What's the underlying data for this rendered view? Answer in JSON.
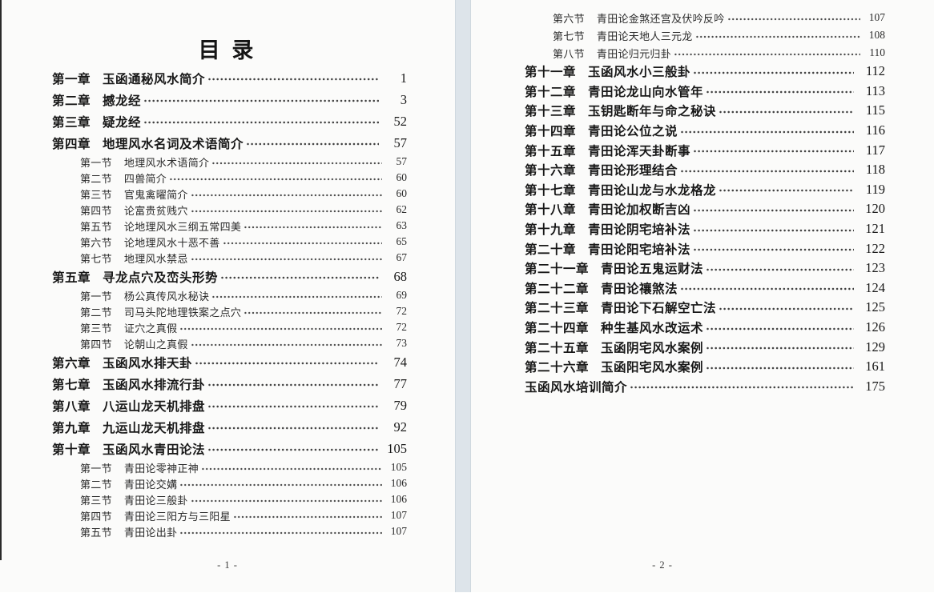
{
  "meta": {
    "document_title": "目 录",
    "accent_colors": {
      "page_background": "#fbfbfa",
      "page_gap": "#dde4ea",
      "text": "#1f1f1f"
    }
  },
  "page1": {
    "title": "目 录",
    "footer": "- 1 -",
    "entries": [
      {
        "type": "chapter",
        "label": "第一章",
        "title": "玉函通秘风水简介",
        "page": "1"
      },
      {
        "type": "chapter",
        "label": "第二章",
        "title": "撼龙经",
        "page": "3"
      },
      {
        "type": "chapter",
        "label": "第三章",
        "title": "疑龙经",
        "page": "52"
      },
      {
        "type": "chapter",
        "label": "第四章",
        "title": "地理风水名词及术语简介",
        "page": "57"
      },
      {
        "type": "section",
        "label": "第一节",
        "title": "地理风水术语简介",
        "page": "57"
      },
      {
        "type": "section",
        "label": "第二节",
        "title": "四兽简介",
        "page": "60"
      },
      {
        "type": "section",
        "label": "第三节",
        "title": "官鬼禽曜简介",
        "page": "60"
      },
      {
        "type": "section",
        "label": "第四节",
        "title": "论富贵贫贱穴",
        "page": "62"
      },
      {
        "type": "section",
        "label": "第五节",
        "title": "论地理风水三纲五常四美",
        "page": "63"
      },
      {
        "type": "section",
        "label": "第六节",
        "title": "论地理风水十恶不善",
        "page": "65"
      },
      {
        "type": "section",
        "label": "第七节",
        "title": "地理风水禁忌",
        "page": "67"
      },
      {
        "type": "chapter",
        "label": "第五章",
        "title": "寻龙点穴及峦头形势",
        "page": "68"
      },
      {
        "type": "section",
        "label": "第一节",
        "title": "杨公真传风水秘诀",
        "page": "69"
      },
      {
        "type": "section",
        "label": "第二节",
        "title": "司马头陀地理铁案之点穴",
        "page": "72"
      },
      {
        "type": "section",
        "label": "第三节",
        "title": "证穴之真假",
        "page": "72"
      },
      {
        "type": "section",
        "label": "第四节",
        "title": "论朝山之真假",
        "page": "73"
      },
      {
        "type": "chapter",
        "label": "第六章",
        "title": "玉函风水排天卦",
        "page": "74"
      },
      {
        "type": "chapter",
        "label": "第七章",
        "title": "玉函风水排流行卦",
        "page": "77"
      },
      {
        "type": "chapter",
        "label": "第八章",
        "title": "八运山龙天机排盘",
        "page": "79"
      },
      {
        "type": "chapter",
        "label": "第九章",
        "title": "九运山龙天机排盘",
        "page": "92"
      },
      {
        "type": "chapter",
        "label": "第十章",
        "title": "玉函风水青田论法",
        "page": "105"
      },
      {
        "type": "section",
        "label": "第一节",
        "title": "青田论零神正神",
        "page": "105"
      },
      {
        "type": "section",
        "label": "第二节",
        "title": "青田论交媾",
        "page": "106"
      },
      {
        "type": "section",
        "label": "第三节",
        "title": "青田论三般卦",
        "page": "106"
      },
      {
        "type": "section",
        "label": "第四节",
        "title": "青田论三阳方与三阳星",
        "page": "107"
      },
      {
        "type": "section",
        "label": "第五节",
        "title": "青田论出卦",
        "page": "107"
      }
    ]
  },
  "page2": {
    "footer": "- 2 -",
    "entries": [
      {
        "type": "section",
        "label": "第六节",
        "title": "青田论金煞还宫及伏吟反吟",
        "page": "107"
      },
      {
        "type": "section",
        "label": "第七节",
        "title": "青田论天地人三元龙",
        "page": "108"
      },
      {
        "type": "section",
        "label": "第八节",
        "title": "青田论归元归卦",
        "page": "110"
      },
      {
        "type": "chapter",
        "label": "第十一章",
        "title": "玉函风水小三般卦",
        "page": "112"
      },
      {
        "type": "chapter",
        "label": "第十二章",
        "title": "青田论龙山向水管年",
        "page": "113"
      },
      {
        "type": "chapter",
        "label": "第十三章",
        "title": "玉钥匙断年与命之秘诀",
        "page": "115"
      },
      {
        "type": "chapter",
        "label": "第十四章",
        "title": "青田论公位之说",
        "page": "116"
      },
      {
        "type": "chapter",
        "label": "第十五章",
        "title": "青田论浑天卦断事",
        "page": "117"
      },
      {
        "type": "chapter",
        "label": "第十六章",
        "title": "青田论形理结合",
        "page": "118"
      },
      {
        "type": "chapter",
        "label": "第十七章",
        "title": "青田论山龙与水龙格龙",
        "page": "119"
      },
      {
        "type": "chapter",
        "label": "第十八章",
        "title": "青田论加权断吉凶",
        "page": "120"
      },
      {
        "type": "chapter",
        "label": "第十九章",
        "title": "青田论阴宅培补法",
        "page": "121"
      },
      {
        "type": "chapter",
        "label": "第二十章",
        "title": "青田论阳宅培补法",
        "page": "122"
      },
      {
        "type": "chapter",
        "label": "第二十一章",
        "title": "青田论五鬼运财法",
        "page": "123"
      },
      {
        "type": "chapter",
        "label": "第二十二章",
        "title": "青田论禳煞法",
        "page": "124"
      },
      {
        "type": "chapter",
        "label": "第二十三章",
        "title": "青田论下石解空亡法",
        "page": "125"
      },
      {
        "type": "chapter",
        "label": "第二十四章",
        "title": "种生基风水改运术",
        "page": "126"
      },
      {
        "type": "chapter",
        "label": "第二十五章",
        "title": "玉函阴宅风水案例",
        "page": "129"
      },
      {
        "type": "chapter",
        "label": "第二十六章",
        "title": "玉函阳宅风水案例",
        "page": "161"
      },
      {
        "type": "plain",
        "label": "",
        "title": "玉函风水培训简介",
        "page": "175"
      }
    ]
  }
}
